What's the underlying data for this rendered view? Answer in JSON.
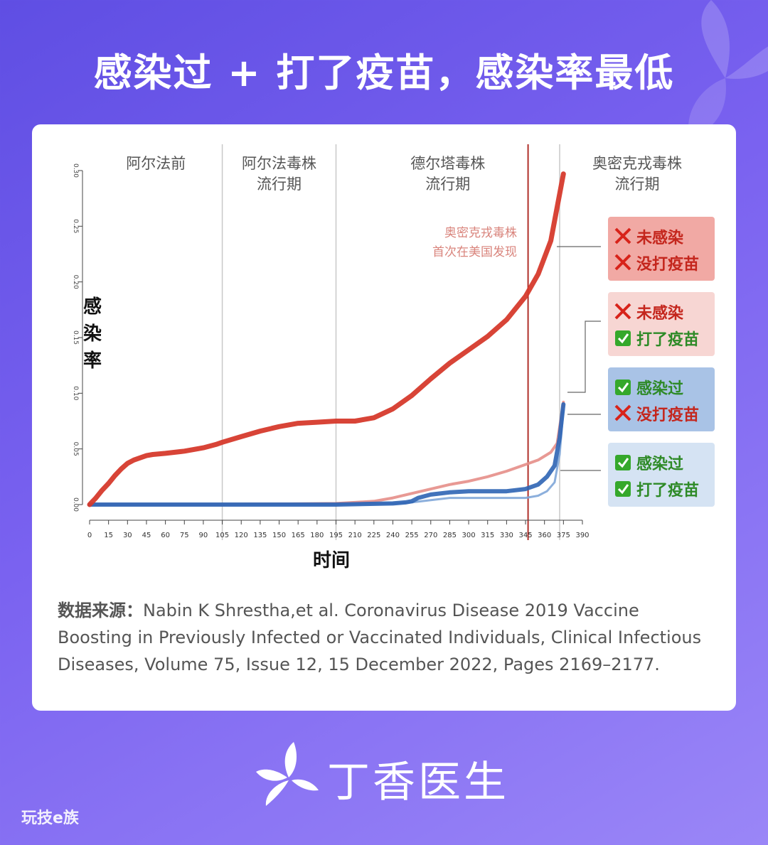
{
  "headline": "感染过 + 打了疫苗，感染率最低",
  "brand": "丁香医生",
  "watermark": "玩技e族",
  "source": {
    "label": "数据来源：",
    "text": "Nabin K Shrestha,et al. Coronavirus Disease 2019 Vaccine Boosting in Previously Infected or Vaccinated Individuals, Clinical Infectious Diseases, Volume 75, Issue 12, 15 December 2022, Pages 2169–2177."
  },
  "chart_data": {
    "type": "line",
    "xlabel": "时间",
    "ylabel": "感染率",
    "xlim": [
      0,
      390
    ],
    "ylim": [
      0,
      0.3
    ],
    "x_ticks": [
      "0",
      "15",
      "30",
      "45",
      "60",
      "75",
      "90",
      "105",
      "120",
      "135",
      "150",
      "165",
      "180",
      "195",
      "210",
      "225",
      "240",
      "255",
      "270",
      "285",
      "300",
      "315",
      "330",
      "345",
      "360",
      "375",
      "390"
    ],
    "y_ticks": [
      "0.00",
      "0.05",
      "0.10",
      "0.15",
      "0.20",
      "0.25",
      "0.30"
    ],
    "periods": [
      {
        "lines": [
          "阿尔法前"
        ],
        "x_start": 0,
        "x_end": 105
      },
      {
        "lines": [
          "阿尔法毒株",
          "流行期"
        ],
        "x_start": 105,
        "x_end": 195
      },
      {
        "lines": [
          "德尔塔毒株",
          "流行期"
        ],
        "x_start": 195,
        "x_end": 372
      },
      {
        "lines": [
          "奥密克戎毒株",
          "流行期"
        ],
        "x_start": 372,
        "x_end": 400
      }
    ],
    "omicron_marker": {
      "x": 347,
      "lines": [
        "奥密克戎毒株",
        "首次在美国发现"
      ],
      "color": "#b0302a"
    },
    "series": [
      {
        "legend": [
          "✕ 未感染",
          "✕ 没打疫苗"
        ],
        "color": "#d63a2c",
        "x": [
          0,
          5,
          10,
          15,
          20,
          25,
          30,
          35,
          40,
          45,
          50,
          60,
          75,
          90,
          100,
          105,
          120,
          135,
          150,
          165,
          180,
          195,
          210,
          225,
          240,
          255,
          270,
          285,
          300,
          315,
          330,
          345,
          355,
          365,
          375
        ],
        "y": [
          0,
          0.006,
          0.013,
          0.019,
          0.026,
          0.032,
          0.037,
          0.04,
          0.042,
          0.044,
          0.045,
          0.046,
          0.048,
          0.051,
          0.054,
          0.056,
          0.061,
          0.066,
          0.07,
          0.073,
          0.074,
          0.075,
          0.075,
          0.078,
          0.086,
          0.098,
          0.113,
          0.127,
          0.139,
          0.151,
          0.166,
          0.187,
          0.207,
          0.237,
          0.297
        ]
      },
      {
        "legend": [
          "✕ 未感染",
          "✅ 打了疫苗"
        ],
        "color": "#e58e88",
        "x": [
          0,
          100,
          195,
          210,
          225,
          240,
          255,
          270,
          285,
          300,
          315,
          330,
          345,
          355,
          365,
          370,
          375
        ],
        "y": [
          0,
          0,
          0.001,
          0.002,
          0.003,
          0.006,
          0.01,
          0.014,
          0.018,
          0.021,
          0.025,
          0.03,
          0.036,
          0.04,
          0.047,
          0.055,
          0.092
        ]
      },
      {
        "legend": [
          "✅ 感染过",
          "✕ 没打疫苗"
        ],
        "color": "#2d64b4",
        "x": [
          0,
          100,
          195,
          240,
          250,
          255,
          260,
          270,
          285,
          300,
          315,
          330,
          345,
          355,
          362,
          368,
          372,
          375
        ],
        "y": [
          0,
          0,
          0,
          0.001,
          0.002,
          0.003,
          0.006,
          0.009,
          0.011,
          0.012,
          0.012,
          0.012,
          0.014,
          0.018,
          0.025,
          0.035,
          0.06,
          0.09
        ]
      },
      {
        "legend": [
          "✅ 感染过",
          "✅ 打了疫苗"
        ],
        "color": "#7fa6d8",
        "x": [
          0,
          100,
          195,
          240,
          255,
          270,
          285,
          300,
          315,
          330,
          345,
          355,
          362,
          368,
          372,
          375
        ],
        "y": [
          0,
          0,
          0,
          0.001,
          0.002,
          0.004,
          0.006,
          0.006,
          0.006,
          0.006,
          0.006,
          0.008,
          0.012,
          0.02,
          0.045,
          0.085
        ]
      }
    ]
  }
}
